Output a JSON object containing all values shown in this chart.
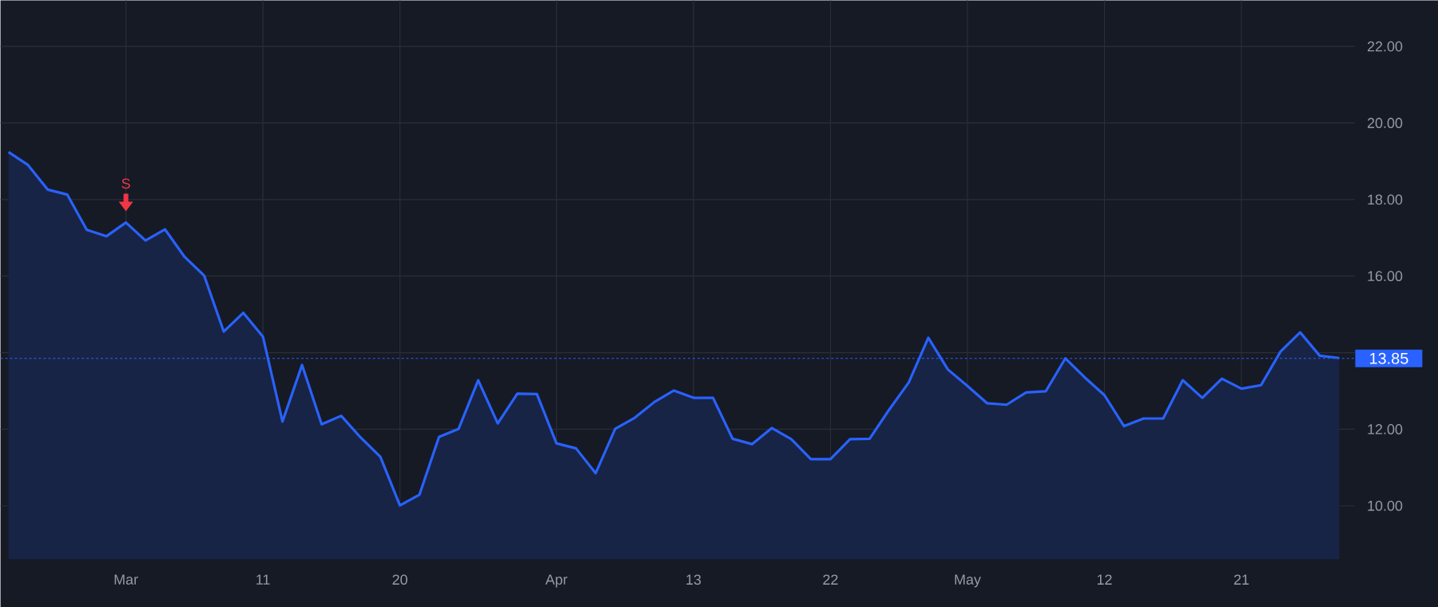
{
  "chart_data": {
    "type": "area",
    "categories": [
      null,
      null,
      null,
      null,
      null,
      null,
      "Mar",
      null,
      null,
      null,
      null,
      null,
      null,
      "11",
      null,
      null,
      null,
      null,
      null,
      null,
      "20",
      null,
      null,
      null,
      null,
      null,
      null,
      null,
      "Apr",
      null,
      null,
      null,
      null,
      null,
      null,
      "13",
      null,
      null,
      null,
      null,
      null,
      null,
      "22",
      null,
      null,
      null,
      null,
      null,
      null,
      "May",
      null,
      null,
      null,
      null,
      null,
      null,
      "12",
      null,
      null,
      null,
      null,
      null,
      null,
      "21",
      null,
      null,
      null,
      null,
      null
    ],
    "series": [
      {
        "color": "#2962ff",
        "values": [
          19.24,
          18.9,
          18.26,
          18.13,
          17.21,
          17.04,
          17.4,
          16.93,
          17.22,
          16.5,
          16.01,
          14.55,
          15.04,
          14.42,
          12.2,
          13.68,
          12.13,
          12.35,
          11.78,
          11.28,
          10.01,
          10.29,
          11.8,
          12.01,
          13.28,
          12.15,
          12.93,
          12.92,
          11.63,
          11.5,
          10.85,
          12.01,
          12.3,
          12.71,
          13.01,
          12.82,
          12.82,
          11.75,
          11.61,
          12.03,
          11.74,
          11.22,
          11.22,
          11.74,
          11.75,
          12.51,
          13.22,
          14.39,
          13.56,
          13.13,
          12.68,
          12.64,
          12.96,
          12.99,
          13.85,
          13.35,
          12.89,
          12.08,
          12.28,
          12.28,
          13.28,
          12.82,
          13.32,
          13.06,
          13.15,
          14.03,
          14.53,
          13.92,
          13.86
        ]
      }
    ],
    "ylim": [
      8.6,
      23.2
    ],
    "yticks": [
      {
        "value": 10,
        "label": "10.00"
      },
      {
        "value": 12,
        "label": "12.00"
      },
      {
        "value": 14,
        "label": null
      },
      {
        "value": 16,
        "label": "16.00"
      },
      {
        "value": 18,
        "label": "18.00"
      },
      {
        "value": 20,
        "label": "20.00"
      },
      {
        "value": 22,
        "label": "22.00"
      }
    ],
    "grid": true,
    "ref_lines": [
      {
        "axis": "y",
        "value": 13.85,
        "label": "13.85",
        "color": "#2962ff",
        "line_style": "dotted"
      }
    ],
    "annotations": [
      {
        "text": "S",
        "x": "Mar",
        "y": 17.4
      }
    ]
  }
}
